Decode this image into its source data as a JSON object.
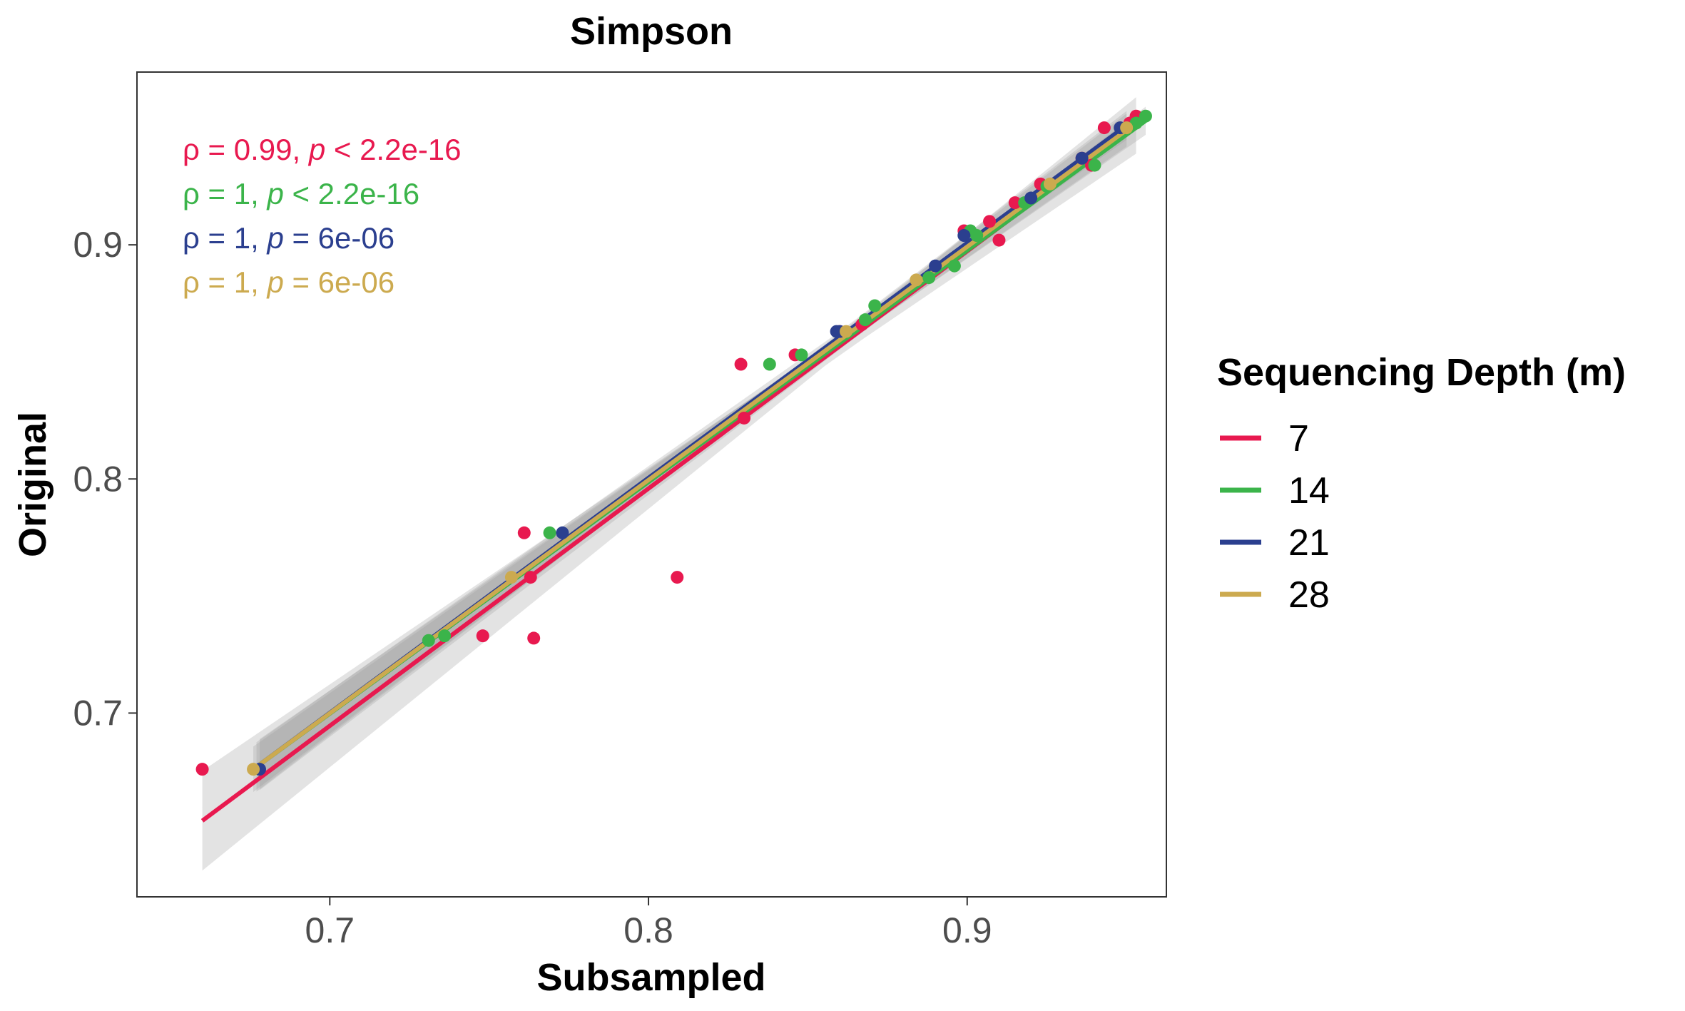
{
  "chart_data": {
    "type": "scatter",
    "title": "Simpson",
    "xlabel": "Subsampled",
    "ylabel": "Original",
    "xlim": [
      0.6395,
      0.9625
    ],
    "ylim": [
      0.6215,
      0.9738
    ],
    "x_ticks": [
      0.7,
      0.8,
      0.9
    ],
    "y_ticks": [
      0.7,
      0.8,
      0.9
    ],
    "x_tick_labels": [
      "0.7",
      "0.8",
      "0.9"
    ],
    "y_tick_labels": [
      "0.7",
      "0.8",
      "0.9"
    ],
    "grid": false,
    "legend": {
      "title": "Sequencing Depth (m)",
      "position": "right"
    },
    "series": [
      {
        "name": "7",
        "color": "#E8194F",
        "points": [
          [
            0.66,
            0.676
          ],
          [
            0.748,
            0.733
          ],
          [
            0.761,
            0.777
          ],
          [
            0.763,
            0.758
          ],
          [
            0.764,
            0.732
          ],
          [
            0.809,
            0.758
          ],
          [
            0.829,
            0.849
          ],
          [
            0.83,
            0.826
          ],
          [
            0.846,
            0.853
          ],
          [
            0.86,
            0.863
          ],
          [
            0.867,
            0.866
          ],
          [
            0.899,
            0.906
          ],
          [
            0.907,
            0.91
          ],
          [
            0.91,
            0.902
          ],
          [
            0.915,
            0.918
          ],
          [
            0.923,
            0.926
          ],
          [
            0.936,
            0.937
          ],
          [
            0.939,
            0.934
          ],
          [
            0.943,
            0.95
          ],
          [
            0.951,
            0.952
          ],
          [
            0.953,
            0.955
          ]
        ],
        "fit": {
          "x": [
            0.66,
            0.953
          ],
          "y": [
            0.654,
            0.951
          ]
        },
        "stat": {
          "rho": "0.99",
          "op": "<",
          "p": "2.2e-16"
        }
      },
      {
        "name": "14",
        "color": "#3BB44A",
        "points": [
          [
            0.731,
            0.731
          ],
          [
            0.736,
            0.733
          ],
          [
            0.769,
            0.777
          ],
          [
            0.838,
            0.849
          ],
          [
            0.848,
            0.853
          ],
          [
            0.868,
            0.868
          ],
          [
            0.871,
            0.874
          ],
          [
            0.888,
            0.886
          ],
          [
            0.896,
            0.891
          ],
          [
            0.901,
            0.906
          ],
          [
            0.903,
            0.904
          ],
          [
            0.918,
            0.918
          ],
          [
            0.925,
            0.925
          ],
          [
            0.94,
            0.934
          ],
          [
            0.953,
            0.952
          ],
          [
            0.956,
            0.955
          ]
        ],
        "fit": {
          "x": [
            0.678,
            0.956
          ],
          "y": [
            0.678,
            0.953
          ]
        },
        "stat": {
          "rho": "1",
          "op": "<",
          "p": "2.2e-16"
        }
      },
      {
        "name": "21",
        "color": "#2B3F8F",
        "points": [
          [
            0.678,
            0.676
          ],
          [
            0.773,
            0.777
          ],
          [
            0.859,
            0.863
          ],
          [
            0.86,
            0.863
          ],
          [
            0.89,
            0.891
          ],
          [
            0.899,
            0.904
          ],
          [
            0.92,
            0.92
          ],
          [
            0.936,
            0.937
          ],
          [
            0.948,
            0.95
          ]
        ],
        "fit": {
          "x": [
            0.677,
            0.95
          ],
          "y": [
            0.677,
            0.951
          ]
        },
        "stat": {
          "rho": "1",
          "op": "=",
          "p": "6e-06"
        }
      },
      {
        "name": "28",
        "color": "#CCAA4F",
        "points": [
          [
            0.676,
            0.676
          ],
          [
            0.757,
            0.758
          ],
          [
            0.862,
            0.863
          ],
          [
            0.884,
            0.885
          ],
          [
            0.926,
            0.926
          ],
          [
            0.95,
            0.95
          ]
        ],
        "fit": {
          "x": [
            0.676,
            0.95
          ],
          "y": [
            0.676,
            0.949
          ]
        },
        "stat": {
          "rho": "1",
          "op": "=",
          "p": "6e-06"
        }
      }
    ]
  }
}
